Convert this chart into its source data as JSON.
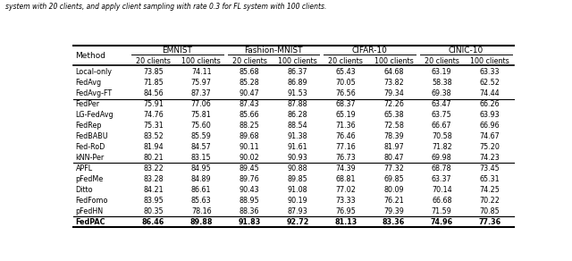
{
  "title_text": "system with 20 clients, and apply client sampling with rate 0.3 for FL system with 100 clients.",
  "datasets": [
    "EMNIST",
    "Fashion-MNIST",
    "CIFAR-10",
    "CINIC-10"
  ],
  "col_headers": [
    "20 clients",
    "100 clients",
    "20 clients",
    "100 clients",
    "20 clients",
    "100 clients",
    "20 clients",
    "100 clients"
  ],
  "groups": [
    {
      "methods": [
        "Local-only",
        "FedAvg",
        "FedAvg-FT"
      ],
      "data": [
        [
          73.85,
          74.11,
          85.68,
          86.37,
          65.43,
          64.68,
          63.19,
          63.33
        ],
        [
          71.85,
          75.97,
          85.28,
          86.89,
          70.05,
          73.82,
          58.38,
          62.52
        ],
        [
          84.56,
          87.37,
          90.47,
          91.53,
          76.56,
          79.34,
          69.38,
          74.44
        ]
      ]
    },
    {
      "methods": [
        "FedPer",
        "LG-FedAvg",
        "FedRep",
        "FedBABU",
        "Fed-RoD",
        "kNN-Per"
      ],
      "data": [
        [
          75.91,
          77.06,
          87.43,
          87.88,
          68.37,
          72.26,
          63.47,
          66.26
        ],
        [
          74.76,
          75.81,
          85.66,
          86.28,
          65.19,
          65.38,
          63.75,
          63.93
        ],
        [
          75.31,
          75.6,
          88.25,
          88.54,
          71.36,
          72.58,
          66.67,
          66.96
        ],
        [
          83.52,
          85.59,
          89.68,
          91.38,
          76.46,
          78.39,
          70.58,
          74.67
        ],
        [
          81.94,
          84.57,
          90.11,
          91.61,
          77.16,
          81.97,
          71.82,
          75.2
        ],
        [
          80.21,
          83.15,
          90.02,
          90.93,
          76.73,
          80.47,
          69.98,
          74.23
        ]
      ]
    },
    {
      "methods": [
        "APFL",
        "pFedMe",
        "Ditto",
        "FedFomo",
        "pFedHN"
      ],
      "data": [
        [
          83.22,
          84.95,
          89.45,
          90.88,
          74.39,
          77.32,
          68.78,
          73.45
        ],
        [
          83.28,
          84.89,
          89.76,
          89.85,
          68.81,
          69.85,
          63.37,
          65.31
        ],
        [
          84.21,
          86.61,
          90.43,
          91.08,
          77.02,
          80.09,
          70.14,
          74.25
        ],
        [
          83.95,
          85.63,
          88.95,
          90.19,
          73.33,
          76.21,
          66.68,
          70.22
        ],
        [
          80.35,
          78.16,
          88.36,
          87.93,
          76.95,
          79.39,
          71.59,
          70.85
        ]
      ]
    }
  ],
  "last_method": "FedPAC",
  "last_data": [
    86.46,
    89.88,
    91.83,
    92.72,
    81.13,
    83.36,
    74.96,
    77.36
  ],
  "fig_width": 6.4,
  "fig_height": 2.92,
  "dpi": 100
}
